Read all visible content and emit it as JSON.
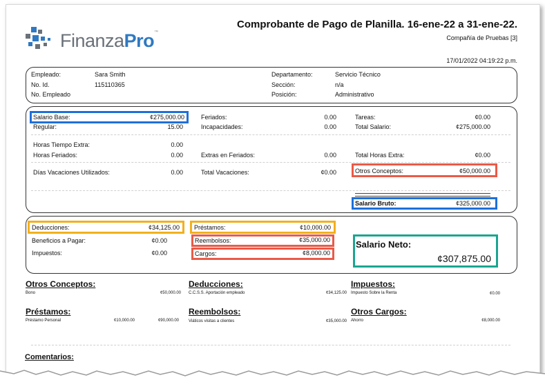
{
  "logo": {
    "part1": "Finanza",
    "part2": "Pro",
    "tm": "™"
  },
  "header": {
    "title": "Comprobante de Pago de Planilla.  16-ene-22 a 31-ene-22.",
    "company": "Compañía de Pruebas [3]",
    "datetime": "17/01/2022 04:19:22 p.m."
  },
  "employee": {
    "empleado_label": "Empleado:",
    "empleado_value": "Sara Smith",
    "id_label": "No. Id.",
    "id_value": "115110365",
    "numero_label": "No. Empleado",
    "depto_label": "Departamento:",
    "depto_value": "Servicio Técnico",
    "seccion_label": "Sección:",
    "seccion_value": "n/a",
    "posicion_label": "Posición:",
    "posicion_value": "Administrativo"
  },
  "earnings": {
    "salario_base_label": "Salario Base:",
    "salario_base_value": "¢275,000.00",
    "regular_label": "Regular:",
    "regular_value": "15.00",
    "feriados_label": "Feriados:",
    "feriados_value": "0.00",
    "incapacidades_label": "Incapacidades:",
    "incapacidades_value": "0.00",
    "tareas_label": "Tareas:",
    "tareas_value": "¢0.00",
    "total_salario_label": "Total Salario:",
    "total_salario_value": "¢275,000.00",
    "horas_extra_label": "Horas Tiempo Extra:",
    "horas_extra_value": "0.00",
    "horas_feriados_label": "Horas Feriados:",
    "horas_feriados_value": "0.00",
    "extras_feriados_label": "Extras en Feriados:",
    "extras_feriados_value": "0.00",
    "total_horas_extra_label": "Total Horas Extra:",
    "total_horas_extra_value": "¢0.00",
    "dias_vac_label": "Días Vacaciones Utilizados:",
    "dias_vac_value": "0.00",
    "total_vac_label": "Total Vacaciones:",
    "total_vac_value": "¢0.00",
    "otros_conceptos_label": "Otros Conceptos:",
    "otros_conceptos_value": "¢50,000.00",
    "salario_bruto_label": "Salario Bruto:",
    "salario_bruto_value": "¢325,000.00"
  },
  "deductions": {
    "deducciones_label": "Deducciones:",
    "deducciones_value": "¢34,125.00",
    "beneficios_label": "Beneficios a Pagar:",
    "beneficios_value": "¢0.00",
    "impuestos_label": "Impuestos:",
    "impuestos_value": "¢0.00",
    "prestamos_label": "Préstamos:",
    "prestamos_value": "¢10,000.00",
    "reembolsos_label": "Reembolsos:",
    "reembolsos_value": "¢35,000.00",
    "cargos_label": "Cargos:",
    "cargos_value": "¢8,000.00",
    "neto_label": "Salario Neto:",
    "neto_value": "¢307,875.00"
  },
  "details": {
    "otros_conceptos": {
      "title": "Otros Conceptos:",
      "desc": "Bono",
      "amount": "¢50,000.00"
    },
    "deducciones": {
      "title": "Deducciones:",
      "desc": "C.C.S.S. Aportación empleado",
      "amount": "¢34,125.00"
    },
    "impuestos": {
      "title": "Impuestos:",
      "desc": "Impuesto Sobre la Renta",
      "amount": "¢0.00"
    },
    "prestamos": {
      "title": "Préstamos:",
      "desc": "Préstamo Personal",
      "amount": "¢10,000.00",
      "amount2": "¢90,000.00"
    },
    "reembolsos": {
      "title": "Reembolsos:",
      "desc": "Viáticos visitas a clientes",
      "amount": "¢35,000.00"
    },
    "otros_cargos": {
      "title": "Otros Cargos:",
      "desc": "Ahorro",
      "amount": "¢8,000.00"
    }
  },
  "comentarios": "Comentarios:",
  "colors": {
    "blue": "#1e6fd9",
    "orange": "#f2b01e",
    "red": "#ea5a47",
    "green": "#1aa58f",
    "brand_blue": "#2f79c2"
  }
}
